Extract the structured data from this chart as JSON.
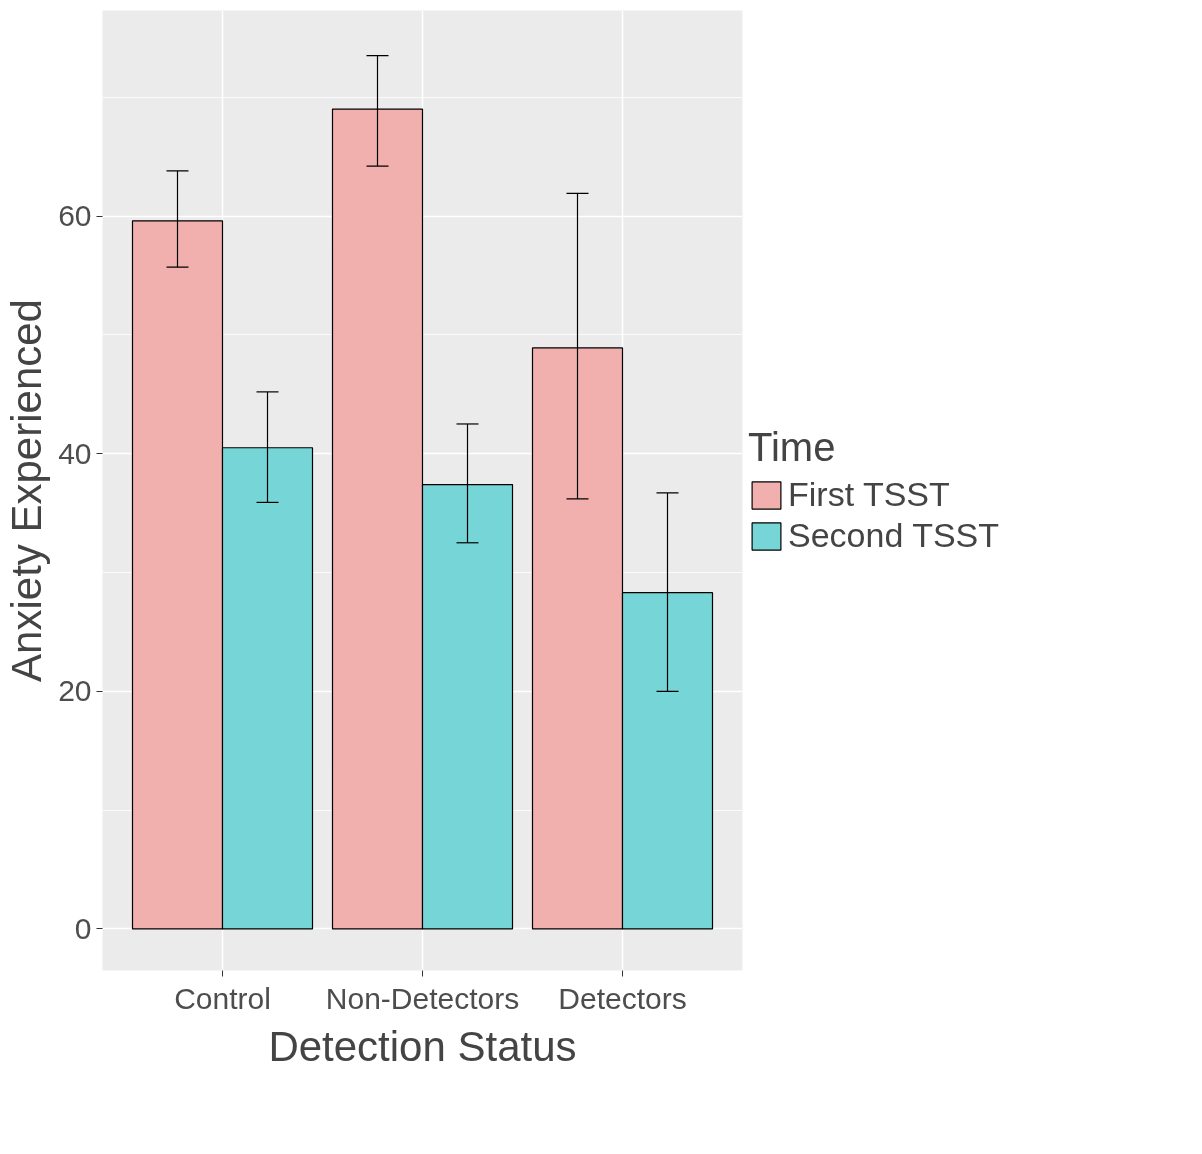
{
  "chart_data": {
    "type": "bar",
    "xlabel": "Detection Status",
    "ylabel": "Anxiety Experienced",
    "legend_title": "Time",
    "categories": [
      "Control",
      "Non-Detectors",
      "Detectors"
    ],
    "series": [
      {
        "name": "First TSST",
        "color": "#f1b0ad",
        "values": [
          59.6,
          69.0,
          48.9
        ],
        "errors": [
          [
            55.7,
            63.8
          ],
          [
            64.2,
            73.5
          ],
          [
            36.2,
            61.9
          ]
        ]
      },
      {
        "name": "Second TSST",
        "color": "#76d5d6",
        "values": [
          40.5,
          37.4,
          28.3
        ],
        "errors": [
          [
            35.9,
            45.2
          ],
          [
            32.5,
            42.5
          ],
          [
            20.0,
            36.7
          ]
        ]
      }
    ],
    "ylim": [
      -3.5,
      77.3
    ],
    "yticks": [
      0,
      20,
      40,
      60
    ],
    "grid": true,
    "legend": "right"
  }
}
